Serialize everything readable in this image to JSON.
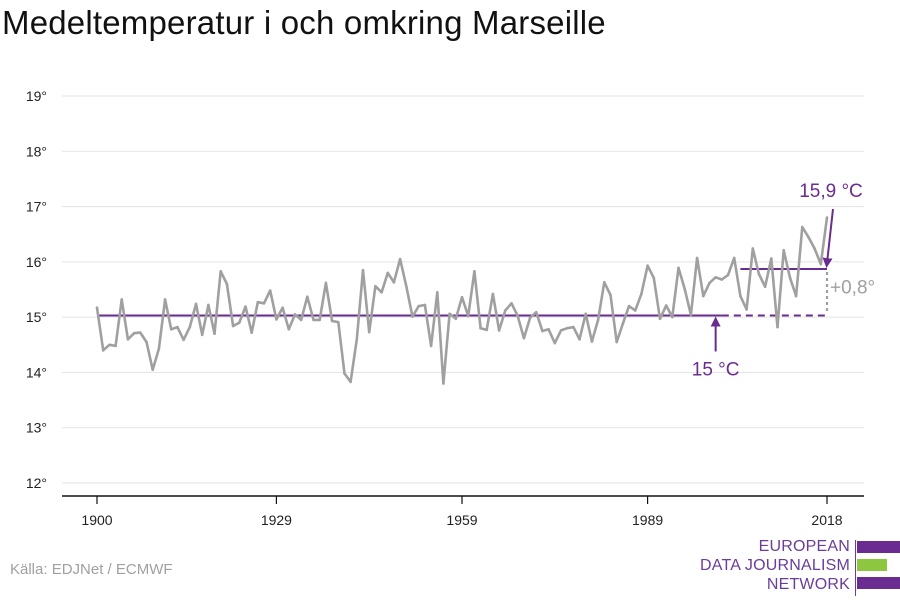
{
  "title": "Medeltemperatur i och omkring Marseille",
  "source": "Källa: EDJNet / ECMWF",
  "logo": {
    "lines": [
      "EUROPEAN",
      "DATA JOURNALISM",
      "NETWORK"
    ]
  },
  "colors": {
    "series": "#a0a0a0",
    "average": "#6a2c91",
    "grid": "#e3e3e3",
    "accent_green": "#8dc63f"
  },
  "chart_data": {
    "type": "line",
    "title": "Medeltemperatur i och omkring Marseille",
    "xlabel": "",
    "ylabel": "",
    "xlim": [
      1900,
      2018
    ],
    "ylim": [
      12,
      19
    ],
    "x_ticks": [
      1900,
      1929,
      1959,
      1989,
      2018
    ],
    "y_ticks": [
      12,
      13,
      14,
      15,
      16,
      17,
      18,
      19
    ],
    "y_tick_labels": [
      "12°",
      "13°",
      "14°",
      "15°",
      "16°",
      "17°",
      "18°",
      "19°"
    ],
    "grid": true,
    "series": [
      {
        "x": [
          1900,
          1901,
          1902,
          1903,
          1904,
          1905,
          1906,
          1907,
          1908,
          1909,
          1910,
          1911,
          1912,
          1913,
          1914,
          1915,
          1916,
          1917,
          1918,
          1919,
          1920,
          1921,
          1922,
          1923,
          1924,
          1925,
          1926,
          1927,
          1928,
          1929,
          1930,
          1931,
          1932,
          1933,
          1934,
          1935,
          1936,
          1937,
          1938,
          1939,
          1940,
          1941,
          1942,
          1943,
          1944,
          1945,
          1946,
          1947,
          1948,
          1949,
          1950,
          1951,
          1952,
          1953,
          1954,
          1955,
          1956,
          1957,
          1958,
          1959,
          1960,
          1961,
          1962,
          1963,
          1964,
          1965,
          1966,
          1967,
          1968,
          1969,
          1970,
          1971,
          1972,
          1973,
          1974,
          1975,
          1976,
          1977,
          1978,
          1979,
          1980,
          1981,
          1982,
          1983,
          1984,
          1985,
          1986,
          1987,
          1988,
          1989,
          1990,
          1991,
          1992,
          1993,
          1994,
          1995,
          1996,
          1997,
          1998,
          1999,
          2000,
          2001,
          2002,
          2003,
          2004,
          2005,
          2006,
          2007,
          2008,
          2009,
          2010,
          2011,
          2012,
          2013,
          2014,
          2015,
          2016,
          2017,
          2018
        ],
        "values": [
          15.17,
          14.4,
          14.5,
          14.48,
          15.32,
          14.6,
          14.71,
          14.72,
          14.55,
          14.05,
          14.43,
          15.32,
          14.78,
          14.82,
          14.59,
          14.82,
          15.24,
          14.68,
          15.22,
          14.7,
          15.83,
          15.6,
          14.84,
          14.9,
          15.19,
          14.72,
          15.27,
          15.25,
          15.48,
          14.96,
          15.17,
          14.78,
          15.05,
          14.95,
          15.37,
          14.95,
          14.95,
          15.62,
          14.93,
          14.91,
          13.98,
          13.83,
          14.6,
          15.85,
          14.73,
          15.56,
          15.45,
          15.8,
          15.63,
          16.05,
          15.56,
          15.01,
          15.2,
          15.22,
          14.48,
          15.45,
          13.8,
          15.06,
          14.97,
          15.36,
          15.02,
          15.83,
          14.8,
          14.77,
          15.42,
          14.76,
          15.12,
          15.25,
          15.02,
          14.62,
          14.99,
          15.09,
          14.75,
          14.78,
          14.53,
          14.76,
          14.8,
          14.82,
          14.6,
          15.06,
          14.56,
          14.95,
          15.63,
          15.4,
          14.55,
          14.88,
          15.2,
          15.12,
          15.42,
          15.93,
          15.71,
          14.97,
          15.21,
          15.0,
          15.89,
          15.51,
          15.04,
          16.07,
          15.38,
          15.62,
          15.72,
          15.68,
          15.76,
          16.07,
          15.38,
          15.14,
          16.24,
          15.78,
          15.55,
          16.06,
          14.82,
          16.21,
          15.72,
          15.38,
          16.63,
          16.45,
          16.24,
          15.96,
          16.8
        ]
      }
    ],
    "average_lines": [
      {
        "from": 1900,
        "to": 2001,
        "value": 15.03
      },
      {
        "from": 2001,
        "to": 2018,
        "value": 15.03,
        "style": "dashed"
      },
      {
        "from": 2004,
        "to": 2018,
        "value": 15.87
      }
    ],
    "annotations": [
      {
        "text": "15 °C",
        "x": 2000,
        "y": 15.03
      },
      {
        "text": "15,9 °C",
        "x": 2018,
        "y": 15.87
      },
      {
        "text": "+0,8°",
        "x": 2018,
        "y": 15.45
      }
    ]
  }
}
